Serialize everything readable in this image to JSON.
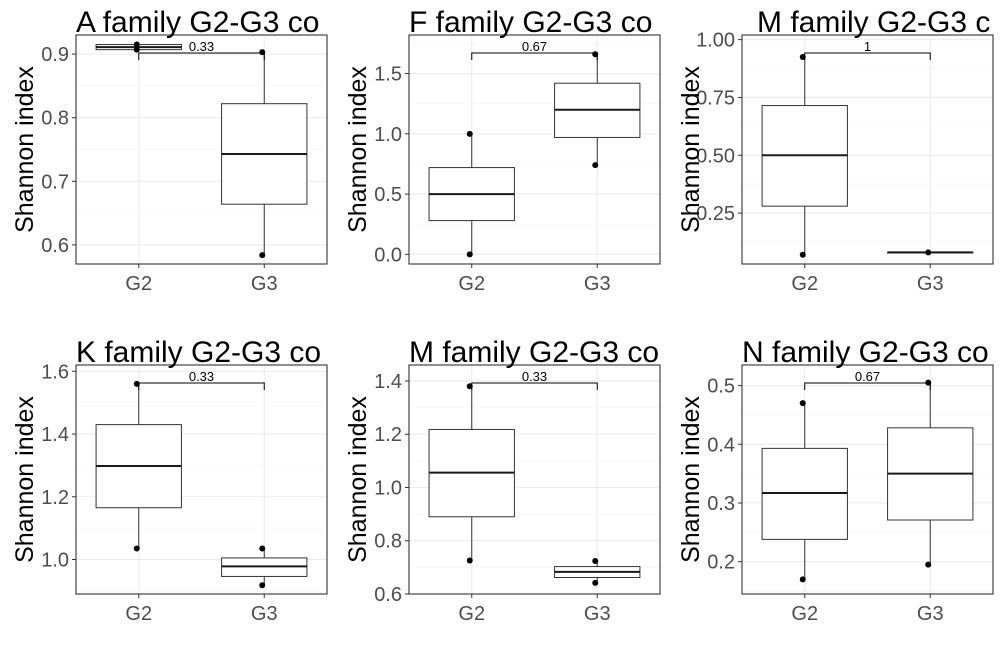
{
  "chart_data": [
    {
      "type": "box",
      "title": "A family G2-G3 co",
      "ylabel": "Shannon index",
      "xlabel": "",
      "categories": [
        "G2",
        "G3"
      ],
      "ylim": [
        0.57,
        0.93
      ],
      "yticks": [
        0.6,
        0.7,
        0.8,
        0.9
      ],
      "ytick_labels": [
        "0.6",
        "0.7",
        "0.8",
        "0.9"
      ],
      "boxes": [
        {
          "name": "G2",
          "whisker_low": 0.907,
          "q1": 0.907,
          "median": 0.911,
          "q3": 0.915,
          "whisker_high": 0.915,
          "points": [
            0.915,
            0.907
          ]
        },
        {
          "name": "G3",
          "whisker_low": 0.584,
          "q1": 0.664,
          "median": 0.743,
          "q3": 0.822,
          "whisker_high": 0.903,
          "points": [
            0.903,
            0.584
          ]
        }
      ],
      "pvalue_label": "0.33",
      "grid": true
    },
    {
      "type": "box",
      "title": "F family G2-G3 co",
      "ylabel": "Shannon index",
      "xlabel": "",
      "categories": [
        "G2",
        "G3"
      ],
      "ylim": [
        -0.08,
        1.82
      ],
      "yticks": [
        0.0,
        0.5,
        1.0,
        1.5
      ],
      "ytick_labels": [
        "0.0",
        "0.5",
        "1.0",
        "1.5"
      ],
      "boxes": [
        {
          "name": "G2",
          "whisker_low": 0.0,
          "q1": 0.28,
          "median": 0.5,
          "q3": 0.72,
          "whisker_high": 1.0,
          "points": [
            1.0,
            0.0
          ]
        },
        {
          "name": "G3",
          "whisker_low": 0.74,
          "q1": 0.97,
          "median": 1.2,
          "q3": 1.42,
          "whisker_high": 1.66,
          "points": [
            1.66,
            0.74
          ]
        }
      ],
      "pvalue_label": "0.67",
      "grid": true
    },
    {
      "type": "box",
      "title": "M family G2-G3 c",
      "ylabel": "Shannon index",
      "xlabel": "",
      "categories": [
        "G2",
        "G3"
      ],
      "ylim": [
        0.03,
        1.02
      ],
      "yticks": [
        0.25,
        0.5,
        0.75,
        1.0
      ],
      "ytick_labels": [
        "0.25",
        "0.50",
        "0.75",
        "1.00"
      ],
      "boxes": [
        {
          "name": "G2",
          "whisker_low": 0.07,
          "q1": 0.28,
          "median": 0.5,
          "q3": 0.715,
          "whisker_high": 0.925,
          "points": [
            0.925,
            0.07
          ]
        },
        {
          "name": "G3",
          "whisker_low": 0.08,
          "q1": 0.08,
          "median": 0.08,
          "q3": 0.08,
          "whisker_high": 0.08,
          "points": [
            0.08
          ]
        }
      ],
      "pvalue_label": "1",
      "grid": true
    },
    {
      "type": "box",
      "title": "K family G2-G3 co",
      "ylabel": "Shannon index",
      "xlabel": "",
      "categories": [
        "G2",
        "G3"
      ],
      "ylim": [
        0.89,
        1.62
      ],
      "yticks": [
        1.0,
        1.2,
        1.4,
        1.6
      ],
      "ytick_labels": [
        "1.0",
        "1.2",
        "1.4",
        "1.6"
      ],
      "boxes": [
        {
          "name": "G2",
          "whisker_low": 1.035,
          "q1": 1.165,
          "median": 1.298,
          "q3": 1.43,
          "whisker_high": 1.56,
          "points": [
            1.56,
            1.035
          ]
        },
        {
          "name": "G3",
          "whisker_low": 0.918,
          "q1": 0.946,
          "median": 0.978,
          "q3": 1.005,
          "whisker_high": 1.035,
          "points": [
            1.035,
            0.918
          ]
        }
      ],
      "pvalue_label": "0.33",
      "grid": true
    },
    {
      "type": "box",
      "title": "M family G2-G3 co",
      "ylabel": "Shannon index",
      "xlabel": "",
      "categories": [
        "G2",
        "G3"
      ],
      "ylim": [
        0.6,
        1.46
      ],
      "yticks": [
        0.6,
        0.8,
        1.0,
        1.2,
        1.4
      ],
      "ytick_labels": [
        "0.6",
        "0.8",
        "1.0",
        "1.2",
        "1.4"
      ],
      "boxes": [
        {
          "name": "G2",
          "whisker_low": 0.726,
          "q1": 0.89,
          "median": 1.056,
          "q3": 1.218,
          "whisker_high": 1.38,
          "points": [
            1.38,
            0.726
          ]
        },
        {
          "name": "G3",
          "whisker_low": 0.642,
          "q1": 0.662,
          "median": 0.683,
          "q3": 0.703,
          "whisker_high": 0.724,
          "points": [
            0.724,
            0.642
          ]
        }
      ],
      "pvalue_label": "0.33",
      "grid": true
    },
    {
      "type": "box",
      "title": "N family G2-G3 co",
      "ylabel": "Shannon index",
      "xlabel": "",
      "categories": [
        "G2",
        "G3"
      ],
      "ylim": [
        0.145,
        0.535
      ],
      "yticks": [
        0.2,
        0.3,
        0.4,
        0.5
      ],
      "ytick_labels": [
        "0.2",
        "0.3",
        "0.4",
        "0.5"
      ],
      "boxes": [
        {
          "name": "G2",
          "whisker_low": 0.17,
          "q1": 0.238,
          "median": 0.317,
          "q3": 0.393,
          "whisker_high": 0.47,
          "points": [
            0.47,
            0.17
          ]
        },
        {
          "name": "G3",
          "whisker_low": 0.195,
          "q1": 0.271,
          "median": 0.35,
          "q3": 0.428,
          "whisker_high": 0.505,
          "points": [
            0.505,
            0.195
          ]
        }
      ],
      "pvalue_label": "0.67",
      "grid": true
    }
  ],
  "colors": {
    "box_fill": "#ffffff",
    "box_stroke": "#333333",
    "median": "#1a1a1a",
    "grid_major": "#ebebeb",
    "grid_minor": "#f5f5f5",
    "panel_border": "#333333",
    "tick_text": "#4d4d4d",
    "title_text": "#000000",
    "point": "#000000"
  }
}
